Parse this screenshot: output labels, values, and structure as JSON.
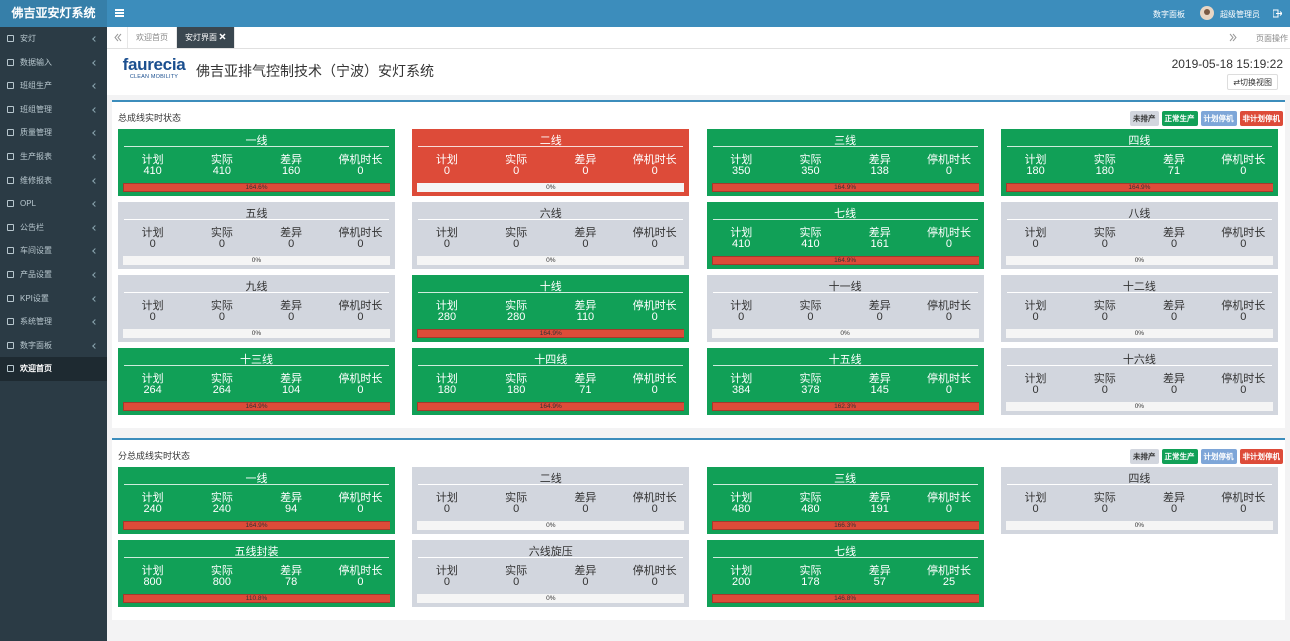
{
  "sidebar": {
    "title": "佛吉亚安灯系统",
    "active": 14,
    "items": [
      "安灯",
      "数据输入",
      "班组生产",
      "班组管理",
      "质量管理",
      "生产报表",
      "维修报表",
      "OPL",
      "公告栏",
      "车间设置",
      "产品设置",
      "KPI设置",
      "系统管理",
      "数字面板",
      "欢迎首页"
    ]
  },
  "topbar": {
    "digital_panel": "数字面板",
    "user": "超级管理员"
  },
  "tabs": {
    "items": [
      "欢迎首页",
      "安灯界面"
    ],
    "active": 1,
    "page_ops": "页面操作"
  },
  "header": {
    "logo": "faurecia",
    "logo_sub": "CLEAN MOBILITY",
    "title": "佛吉亚排气控制技术（宁波）安灯系统",
    "datetime": "2019-05-18 15:19:22",
    "switch_view": "切换视图"
  },
  "card_labels": [
    "计划",
    "实际",
    "差异",
    "停机时长"
  ],
  "sections": [
    {
      "title": "总成线实时状态",
      "legend": [
        {
          "label": "未排产",
          "color": "#d2d6de"
        },
        {
          "label": "正常生产",
          "color": "#11a057"
        },
        {
          "label": "计划停机",
          "color": "#7ea6d8"
        },
        {
          "label": "非计划停机",
          "color": "#dd4b39"
        }
      ],
      "cards": [
        {
          "name": "一线",
          "color": "#11a057",
          "values": [
            410,
            410,
            160,
            0
          ],
          "progress": 164.6,
          "progress_label": "164.6%"
        },
        {
          "name": "二线",
          "color": "#dd4b39",
          "values": [
            0,
            0,
            0,
            0
          ],
          "progress": 0,
          "progress_label": "0%"
        },
        {
          "name": "三线",
          "color": "#11a057",
          "values": [
            350,
            350,
            138,
            0
          ],
          "progress": 164.9,
          "progress_label": "164.9%"
        },
        {
          "name": "四线",
          "color": "#11a057",
          "values": [
            180,
            180,
            71,
            0
          ],
          "progress": 164.9,
          "progress_label": "164.9%"
        },
        {
          "name": "五线",
          "color": "#d2d6de",
          "values": [
            0,
            0,
            0,
            0
          ],
          "progress": 0,
          "progress_label": "0%"
        },
        {
          "name": "六线",
          "color": "#d2d6de",
          "values": [
            0,
            0,
            0,
            0
          ],
          "progress": 0,
          "progress_label": "0%"
        },
        {
          "name": "七线",
          "color": "#11a057",
          "values": [
            410,
            410,
            161,
            0
          ],
          "progress": 164.9,
          "progress_label": "164.9%"
        },
        {
          "name": "八线",
          "color": "#d2d6de",
          "values": [
            0,
            0,
            0,
            0
          ],
          "progress": 0,
          "progress_label": "0%"
        },
        {
          "name": "九线",
          "color": "#d2d6de",
          "values": [
            0,
            0,
            0,
            0
          ],
          "progress": 0,
          "progress_label": "0%"
        },
        {
          "name": "十线",
          "color": "#11a057",
          "values": [
            280,
            280,
            110,
            0
          ],
          "progress": 164.9,
          "progress_label": "164.9%"
        },
        {
          "name": "十一线",
          "color": "#d2d6de",
          "values": [
            0,
            0,
            0,
            0
          ],
          "progress": 0,
          "progress_label": "0%"
        },
        {
          "name": "十二线",
          "color": "#d2d6de",
          "values": [
            0,
            0,
            0,
            0
          ],
          "progress": 0,
          "progress_label": "0%"
        },
        {
          "name": "十三线",
          "color": "#11a057",
          "values": [
            264,
            264,
            104,
            0
          ],
          "progress": 164.9,
          "progress_label": "164.9%"
        },
        {
          "name": "十四线",
          "color": "#11a057",
          "values": [
            180,
            180,
            71,
            0
          ],
          "progress": 164.9,
          "progress_label": "164.9%"
        },
        {
          "name": "十五线",
          "color": "#11a057",
          "values": [
            384,
            378,
            145,
            0
          ],
          "progress": 162.3,
          "progress_label": "162.3%"
        },
        {
          "name": "十六线",
          "color": "#d2d6de",
          "values": [
            0,
            0,
            0,
            0
          ],
          "progress": 0,
          "progress_label": "0%"
        }
      ]
    },
    {
      "title": "分总成线实时状态",
      "legend": [
        {
          "label": "未排产",
          "color": "#d2d6de"
        },
        {
          "label": "正常生产",
          "color": "#11a057"
        },
        {
          "label": "计划停机",
          "color": "#7ea6d8"
        },
        {
          "label": "非计划停机",
          "color": "#dd4b39"
        }
      ],
      "cards": [
        {
          "name": "一线",
          "color": "#11a057",
          "values": [
            240,
            240,
            94,
            0
          ],
          "progress": 164.9,
          "progress_label": "164.9%"
        },
        {
          "name": "二线",
          "color": "#d2d6de",
          "values": [
            0,
            0,
            0,
            0
          ],
          "progress": 0,
          "progress_label": "0%"
        },
        {
          "name": "三线",
          "color": "#11a057",
          "values": [
            480,
            480,
            191,
            0
          ],
          "progress": 166.3,
          "progress_label": "166.3%"
        },
        {
          "name": "四线",
          "color": "#d2d6de",
          "values": [
            0,
            0,
            0,
            0
          ],
          "progress": 0,
          "progress_label": "0%"
        },
        {
          "name": "五线封装",
          "color": "#11a057",
          "values": [
            800,
            800,
            78,
            0
          ],
          "progress": 110.8,
          "progress_label": "110.8%"
        },
        {
          "name": "六线旋压",
          "color": "#d2d6de",
          "values": [
            0,
            0,
            0,
            0
          ],
          "progress": 0,
          "progress_label": "0%"
        },
        {
          "name": "七线",
          "color": "#11a057",
          "values": [
            200,
            178,
            57,
            25
          ],
          "progress": 146.8,
          "progress_label": "146.8%"
        }
      ]
    }
  ]
}
